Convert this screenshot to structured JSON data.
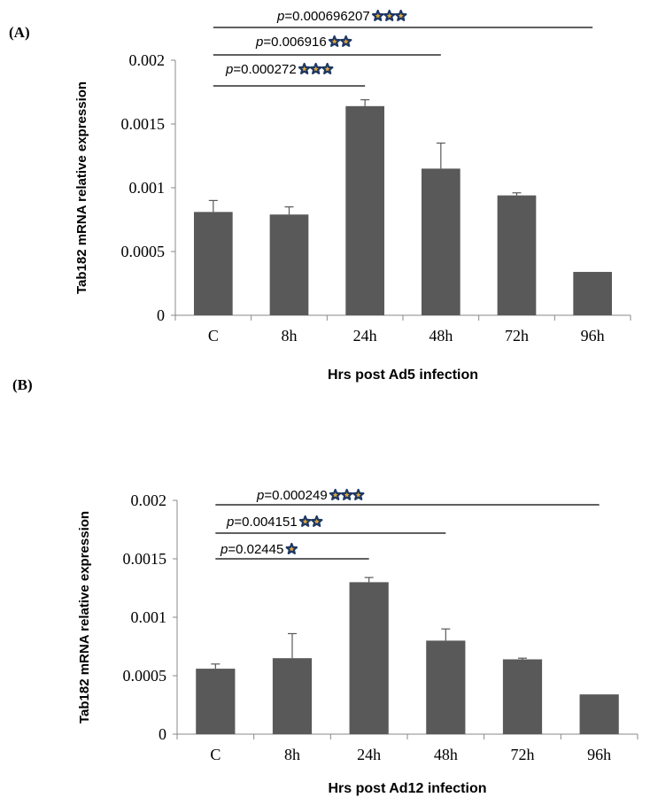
{
  "chart_data": [
    {
      "type": "bar",
      "panel_label": "(A)",
      "xlabel": "Hrs post Ad5 infection",
      "ylabel": "Tab182 mRNA relative expression",
      "ylim": [
        0,
        0.002
      ],
      "yticks": [
        "0",
        "0.0005",
        "0.001",
        "0.0015",
        "0.002"
      ],
      "categories": [
        "C",
        "8h",
        "24h",
        "48h",
        "72h",
        "96h"
      ],
      "values": [
        0.00081,
        0.00079,
        0.00164,
        0.00115,
        0.00094,
        0.00034
      ],
      "errors": [
        9e-05,
        6e-05,
        5e-05,
        0.0002,
        2e-05,
        0
      ],
      "bar_color": "#595959",
      "annotations": [
        {
          "p_label": "p",
          "p_value": "=0.000272",
          "stars": "***",
          "from": "C",
          "to": "24h"
        },
        {
          "p_label": "p",
          "p_value": "=0.006916",
          "stars": "**",
          "from": "C",
          "to": "48h"
        },
        {
          "p_label": "p",
          "p_value": "=0.000696207",
          "stars": "***",
          "from": "C",
          "to": "96h"
        }
      ]
    },
    {
      "type": "bar",
      "panel_label": "(B)",
      "xlabel": "Hrs post Ad12 infection",
      "ylabel": "Tab182 mRNA relative expression",
      "ylim": [
        0,
        0.002
      ],
      "yticks": [
        "0",
        "0.0005",
        "0.001",
        "0.0015",
        "0.002"
      ],
      "categories": [
        "C",
        "8h",
        "24h",
        "48h",
        "72h",
        "96h"
      ],
      "values": [
        0.00056,
        0.00065,
        0.0013,
        0.0008,
        0.00064,
        0.00034
      ],
      "errors": [
        4e-05,
        0.00021,
        4e-05,
        0.0001,
        1e-05,
        0
      ],
      "bar_color": "#595959",
      "annotations": [
        {
          "p_label": "p",
          "p_value": "=0.02445",
          "stars": "*",
          "from": "C",
          "to": "24h"
        },
        {
          "p_label": "p",
          "p_value": "=0.004151",
          "stars": "**",
          "from": "C",
          "to": "48h"
        },
        {
          "p_label": "p",
          "p_value": "=0.000249",
          "stars": "***",
          "from": "C",
          "to": "96h"
        }
      ]
    }
  ]
}
